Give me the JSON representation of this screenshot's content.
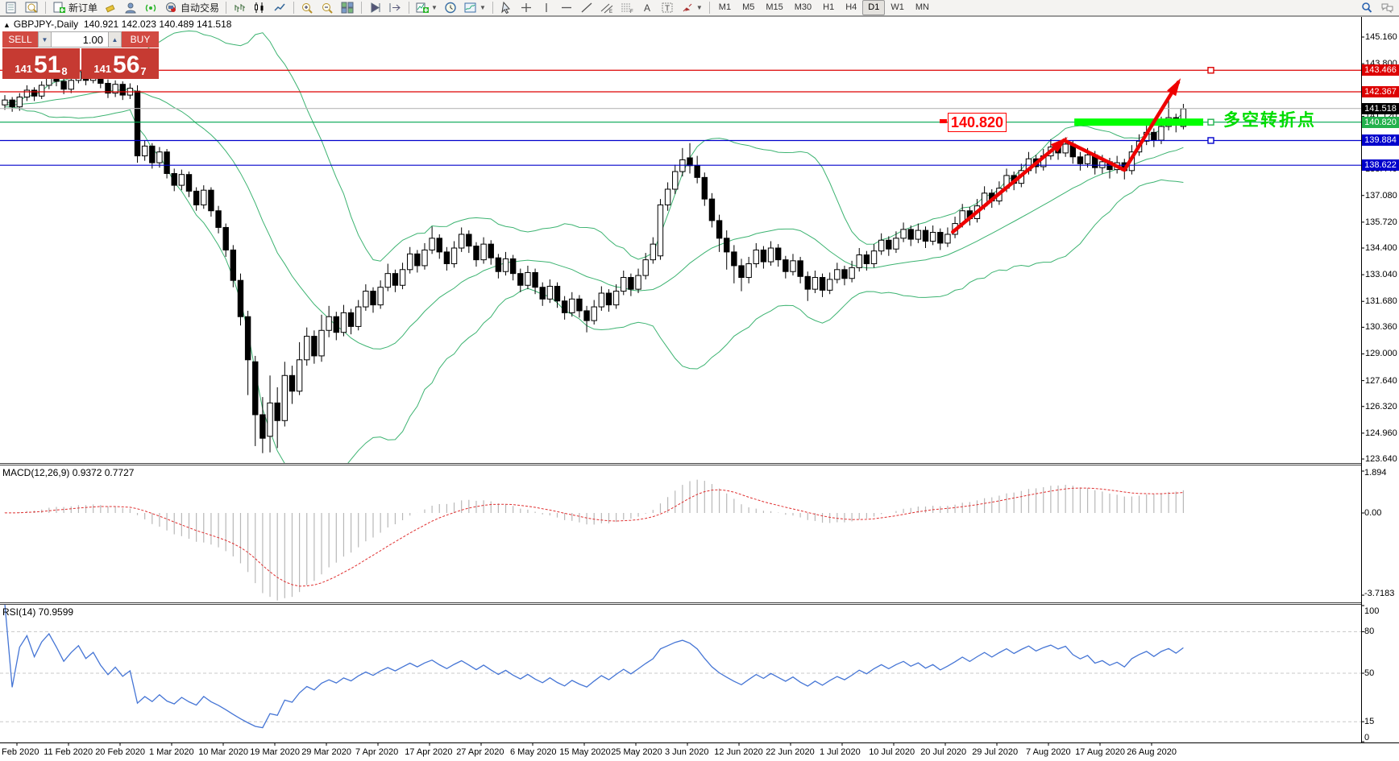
{
  "toolbar": {
    "new_order_label": "新订单",
    "auto_trading_label": "自动交易",
    "timeframes": [
      "M1",
      "M5",
      "M15",
      "M30",
      "H1",
      "H4",
      "D1",
      "W1",
      "MN"
    ],
    "active_timeframe": "D1",
    "left_groups": [
      {
        "items": [
          {
            "name": "chart-window-icon",
            "t": "doc"
          },
          {
            "name": "profiles-icon",
            "t": "grid"
          }
        ]
      },
      {
        "items": [
          {
            "name": "new-order-button",
            "t": "plusdoc",
            "label_key": "new_order_label"
          },
          {
            "name": "eraser-icon",
            "t": "eraser"
          },
          {
            "name": "expert-advisor-icon",
            "t": "person"
          },
          {
            "name": "signals-icon",
            "t": "signal"
          },
          {
            "name": "auto-trading-button",
            "t": "robot",
            "label_key": "auto_trading_label"
          }
        ]
      },
      {
        "items": [
          {
            "name": "bar-chart-icon",
            "t": "bars"
          },
          {
            "name": "candle-chart-icon",
            "t": "candles"
          },
          {
            "name": "line-chart-icon",
            "t": "linec"
          }
        ]
      },
      {
        "items": [
          {
            "name": "zoom-in-icon",
            "t": "zin"
          },
          {
            "name": "zoom-out-icon",
            "t": "zout"
          },
          {
            "name": "tile-windows-icon",
            "t": "tiles"
          }
        ]
      },
      {
        "items": [
          {
            "name": "auto-scroll-icon",
            "t": "play"
          },
          {
            "name": "chart-shift-icon",
            "t": "shift"
          }
        ]
      },
      {
        "items": [
          {
            "name": "indicators-icon",
            "t": "ind",
            "dd": true
          },
          {
            "name": "periods-icon",
            "t": "clock"
          },
          {
            "name": "templates-icon",
            "t": "tmpl",
            "dd": true
          }
        ]
      },
      {
        "items": [
          {
            "name": "cursor-icon",
            "t": "cursor"
          },
          {
            "name": "crosshair-icon",
            "t": "cross"
          },
          {
            "name": "vertical-line-icon",
            "t": "vline"
          },
          {
            "name": "horizontal-line-icon",
            "t": "hline"
          },
          {
            "name": "trendline-icon",
            "t": "tline"
          },
          {
            "name": "equidistant-channel-icon",
            "t": "chan"
          },
          {
            "name": "fibonacci-icon",
            "t": "fibo"
          },
          {
            "name": "text-icon",
            "t": "A"
          },
          {
            "name": "text-label-icon",
            "t": "T"
          },
          {
            "name": "arrows-icon",
            "t": "arrw",
            "dd": true
          }
        ]
      }
    ],
    "right_items": [
      {
        "name": "search-icon",
        "t": "search"
      },
      {
        "name": "chat-icon",
        "t": "chat"
      }
    ]
  },
  "chart_header": {
    "collapse_icon": "▲",
    "symbol": "GBPJPY-,Daily",
    "open": "140.921",
    "high": "142.023",
    "low": "140.489",
    "close": "141.518"
  },
  "trade_panel": {
    "sell_label": "SELL",
    "buy_label": "BUY",
    "volume": "1.00",
    "sell_price_prefix": "141",
    "sell_price_big": "51",
    "sell_price_sup": "8",
    "buy_price_prefix": "141",
    "buy_price_big": "56",
    "buy_price_sup": "7"
  },
  "macd_label": "MACD(12,26,9) 0.9372 0.7727",
  "rsi_label": "RSI(14) 70.9599",
  "annotations": {
    "level_callout": "140.820",
    "turning_point_text": "多空转折点"
  },
  "axes": {
    "price_ticks": [
      145.16,
      143.8,
      142.44,
      141.12,
      139.76,
      138.44,
      137.08,
      135.72,
      134.4,
      133.04,
      131.68,
      130.36,
      129.0,
      127.64,
      126.32,
      124.96,
      123.64
    ],
    "macd_ticks": {
      "top": "1.894",
      "zero": "0.00",
      "bottom": "-3.7183"
    },
    "rsi_ticks": [
      100,
      80,
      50,
      15,
      0
    ],
    "dates": [
      "Feb 2020",
      "11 Feb 2020",
      "20 Feb 2020",
      "1 Mar 2020",
      "10 Mar 2020",
      "19 Mar 2020",
      "29 Mar 2020",
      "7 Apr 2020",
      "17 Apr 2020",
      "27 Apr 2020",
      "6 May 2020",
      "15 May 2020",
      "25 May 2020",
      "3 Jun 2020",
      "12 Jun 2020",
      "22 Jun 2020",
      "1 Jul 2020",
      "10 Jul 2020",
      "20 Jul 2020",
      "29 Jul 2020",
      "7 Aug 2020",
      "17 Aug 2020",
      "26 Aug 2020"
    ]
  },
  "levels": [
    {
      "value": 143.466,
      "label": "143.466",
      "color": "#dd0000",
      "handle": true
    },
    {
      "value": 142.367,
      "label": "142.367",
      "color": "#dd0000",
      "handle": false
    },
    {
      "value": 141.518,
      "label": "141.518",
      "color": "#000000",
      "line_color": "#b8b8b8",
      "current": true
    },
    {
      "value": 140.82,
      "label": "140.820",
      "color": "#22b14c",
      "line_color": "#00a650",
      "handle": true
    },
    {
      "value": 139.884,
      "label": "139.884",
      "color": "#0000cc",
      "handle": true
    },
    {
      "value": 138.622,
      "label": "138.622",
      "color": "#0000cc",
      "handle": false
    }
  ],
  "chart_data": {
    "type": "candlestick",
    "title": "GBPJPY Daily",
    "ohlc_current": {
      "open": 140.921,
      "high": 142.023,
      "low": 140.489,
      "close": 141.518
    },
    "y_range_main": [
      123.43,
      146.15
    ],
    "indicators": [
      {
        "name": "Bollinger Bands",
        "period": 20,
        "deviation": 2,
        "color": "#3cb371"
      },
      {
        "name": "MACD",
        "fast": 12,
        "slow": 26,
        "signal": 9,
        "value": 0.9372,
        "signal_value": 0.7727,
        "range": [
          -3.7183,
          1.894
        ]
      },
      {
        "name": "RSI",
        "period": 14,
        "value": 70.9599,
        "levels": [
          80,
          50,
          15
        ],
        "range": [
          0,
          100
        ]
      }
    ],
    "horizontal_levels": [
      143.466,
      142.367,
      141.518,
      140.82,
      139.884,
      138.622
    ],
    "trend_arrow": {
      "points_bar_price": [
        [
          128.7,
          135.22
        ],
        [
          143.8,
          139.9
        ],
        [
          152.0,
          138.38
        ],
        [
          159.3,
          142.85
        ]
      ],
      "color": "#ee0000"
    },
    "highlight_zone": {
      "price": 140.82,
      "from_bar": 145.2,
      "to_bar": 162.7,
      "color": "#00ff00"
    },
    "candles": [
      [
        141.7,
        142.2,
        141.45,
        141.95
      ],
      [
        141.95,
        142.1,
        141.35,
        141.6
      ],
      [
        141.6,
        142.3,
        141.4,
        142.1
      ],
      [
        142.1,
        142.7,
        141.9,
        142.45
      ],
      [
        142.45,
        142.6,
        141.9,
        142.15
      ],
      [
        142.15,
        142.9,
        142.0,
        142.7
      ],
      [
        142.7,
        143.45,
        142.5,
        143.2
      ],
      [
        143.2,
        143.4,
        142.65,
        142.9
      ],
      [
        142.9,
        143.1,
        142.25,
        142.5
      ],
      [
        142.5,
        143.15,
        142.3,
        142.95
      ],
      [
        142.95,
        143.9,
        142.8,
        143.4
      ],
      [
        143.4,
        143.6,
        142.7,
        142.95
      ],
      [
        142.95,
        143.85,
        142.8,
        143.35
      ],
      [
        143.35,
        143.5,
        142.55,
        142.8
      ],
      [
        142.8,
        143.0,
        142.05,
        142.3
      ],
      [
        142.3,
        142.95,
        142.1,
        142.75
      ],
      [
        142.75,
        142.9,
        141.95,
        142.2
      ],
      [
        142.2,
        142.8,
        142.0,
        142.55
      ],
      [
        142.4,
        142.7,
        138.75,
        139.1
      ],
      [
        139.1,
        139.9,
        138.85,
        139.6
      ],
      [
        139.6,
        139.75,
        138.45,
        138.75
      ],
      [
        138.75,
        139.55,
        138.5,
        139.3
      ],
      [
        139.3,
        139.45,
        137.95,
        138.2
      ],
      [
        138.2,
        138.45,
        137.3,
        137.6
      ],
      [
        137.6,
        138.4,
        137.35,
        138.15
      ],
      [
        138.15,
        138.3,
        137.0,
        137.3
      ],
      [
        137.3,
        137.5,
        136.3,
        136.6
      ],
      [
        136.6,
        137.6,
        136.4,
        137.35
      ],
      [
        137.35,
        137.5,
        136.0,
        136.3
      ],
      [
        136.3,
        136.55,
        135.15,
        135.45
      ],
      [
        135.45,
        135.65,
        133.95,
        134.3
      ],
      [
        134.3,
        134.55,
        132.4,
        132.75
      ],
      [
        132.75,
        133.1,
        130.45,
        130.9
      ],
      [
        130.9,
        131.2,
        126.9,
        128.7
      ],
      [
        128.6,
        128.9,
        124.3,
        125.9
      ],
      [
        125.9,
        126.8,
        123.94,
        124.7
      ],
      [
        124.8,
        127.9,
        123.98,
        126.5
      ],
      [
        126.5,
        127.3,
        124.2,
        125.6
      ],
      [
        125.6,
        128.6,
        125.3,
        127.9
      ],
      [
        127.9,
        128.4,
        126.45,
        127.1
      ],
      [
        127.1,
        129.6,
        126.9,
        128.7
      ],
      [
        128.7,
        130.35,
        128.4,
        129.9
      ],
      [
        129.9,
        130.2,
        128.5,
        128.9
      ],
      [
        128.9,
        131.0,
        128.6,
        130.2
      ],
      [
        130.2,
        131.45,
        129.85,
        130.9
      ],
      [
        130.9,
        131.15,
        129.7,
        130.1
      ],
      [
        130.1,
        131.5,
        129.9,
        131.1
      ],
      [
        131.1,
        131.3,
        130.0,
        130.4
      ],
      [
        130.4,
        131.75,
        130.2,
        131.4
      ],
      [
        131.4,
        132.55,
        131.2,
        132.2
      ],
      [
        132.2,
        132.4,
        131.1,
        131.5
      ],
      [
        131.5,
        132.75,
        131.3,
        132.4
      ],
      [
        132.4,
        133.6,
        132.2,
        133.1
      ],
      [
        133.1,
        133.3,
        132.15,
        132.5
      ],
      [
        132.5,
        133.65,
        132.3,
        133.3
      ],
      [
        133.3,
        134.45,
        133.1,
        134.1
      ],
      [
        134.1,
        134.3,
        133.15,
        133.5
      ],
      [
        133.5,
        134.65,
        133.3,
        134.3
      ],
      [
        134.3,
        135.5,
        134.1,
        134.9
      ],
      [
        134.9,
        135.1,
        133.85,
        134.2
      ],
      [
        134.2,
        134.45,
        133.25,
        133.6
      ],
      [
        133.6,
        134.75,
        133.4,
        134.4
      ],
      [
        134.4,
        135.45,
        134.2,
        135.1
      ],
      [
        135.1,
        135.3,
        134.15,
        134.5
      ],
      [
        134.5,
        134.7,
        133.45,
        133.8
      ],
      [
        133.8,
        134.95,
        133.6,
        134.6
      ],
      [
        134.6,
        134.8,
        133.55,
        133.9
      ],
      [
        133.9,
        134.1,
        132.85,
        133.2
      ],
      [
        133.2,
        134.2,
        133.0,
        133.85
      ],
      [
        133.85,
        134.05,
        132.75,
        133.1
      ],
      [
        133.1,
        133.35,
        132.15,
        132.5
      ],
      [
        132.5,
        133.5,
        132.3,
        133.15
      ],
      [
        133.15,
        133.35,
        132.05,
        132.4
      ],
      [
        132.4,
        132.65,
        131.45,
        131.8
      ],
      [
        131.8,
        132.8,
        131.6,
        132.45
      ],
      [
        132.45,
        132.65,
        131.35,
        131.7
      ],
      [
        131.7,
        131.95,
        130.75,
        131.1
      ],
      [
        131.1,
        132.15,
        130.9,
        131.8
      ],
      [
        131.8,
        132.0,
        130.85,
        131.2
      ],
      [
        131.2,
        131.45,
        130.1,
        130.7
      ],
      [
        130.7,
        131.75,
        130.5,
        131.4
      ],
      [
        131.4,
        132.45,
        131.2,
        132.1
      ],
      [
        132.1,
        132.3,
        131.15,
        131.5
      ],
      [
        131.5,
        132.55,
        131.3,
        132.2
      ],
      [
        132.2,
        133.25,
        132.0,
        132.9
      ],
      [
        132.9,
        133.1,
        131.95,
        132.3
      ],
      [
        132.3,
        133.35,
        132.1,
        133.0
      ],
      [
        133.0,
        134.15,
        132.8,
        133.8
      ],
      [
        133.8,
        134.95,
        133.6,
        134.6
      ],
      [
        134.0,
        136.9,
        133.8,
        136.6
      ],
      [
        136.6,
        137.75,
        136.3,
        137.4
      ],
      [
        137.4,
        138.65,
        137.15,
        138.3
      ],
      [
        138.3,
        139.5,
        138.05,
        138.9
      ],
      [
        139.0,
        139.75,
        138.2,
        138.6
      ],
      [
        138.6,
        139.1,
        137.7,
        138.0
      ],
      [
        138.0,
        138.25,
        136.55,
        136.9
      ],
      [
        136.9,
        137.2,
        135.45,
        135.8
      ],
      [
        135.8,
        136.1,
        134.2,
        134.9
      ],
      [
        134.9,
        135.3,
        133.3,
        134.2
      ],
      [
        134.2,
        134.55,
        132.6,
        133.5
      ],
      [
        133.5,
        133.85,
        132.2,
        132.9
      ],
      [
        132.9,
        133.95,
        132.6,
        133.6
      ],
      [
        133.6,
        134.65,
        133.4,
        134.3
      ],
      [
        134.3,
        134.5,
        133.35,
        133.7
      ],
      [
        133.7,
        134.75,
        133.5,
        134.4
      ],
      [
        134.4,
        134.6,
        133.45,
        133.8
      ],
      [
        133.8,
        134.0,
        132.85,
        133.2
      ],
      [
        133.2,
        134.1,
        133.0,
        133.75
      ],
      [
        133.75,
        133.95,
        132.6,
        132.95
      ],
      [
        132.95,
        133.2,
        131.7,
        132.3
      ],
      [
        132.3,
        133.25,
        132.1,
        132.9
      ],
      [
        132.9,
        133.1,
        131.9,
        132.25
      ],
      [
        132.25,
        133.15,
        132.05,
        132.8
      ],
      [
        132.8,
        133.65,
        132.6,
        133.3
      ],
      [
        133.3,
        133.5,
        132.5,
        132.85
      ],
      [
        132.85,
        133.75,
        132.65,
        133.4
      ],
      [
        133.4,
        134.4,
        133.2,
        134.05
      ],
      [
        134.05,
        134.25,
        133.25,
        133.6
      ],
      [
        133.6,
        134.6,
        133.4,
        134.25
      ],
      [
        134.25,
        135.15,
        134.05,
        134.8
      ],
      [
        134.8,
        135.0,
        134.0,
        134.35
      ],
      [
        134.35,
        135.25,
        134.15,
        134.9
      ],
      [
        134.9,
        135.7,
        134.7,
        135.35
      ],
      [
        135.35,
        135.55,
        134.5,
        134.85
      ],
      [
        134.85,
        135.65,
        134.65,
        135.3
      ],
      [
        135.3,
        135.5,
        134.4,
        134.75
      ],
      [
        134.75,
        135.55,
        134.55,
        135.2
      ],
      [
        135.2,
        135.4,
        134.3,
        134.65
      ],
      [
        134.65,
        135.45,
        134.45,
        135.1
      ],
      [
        135.1,
        136.0,
        134.9,
        135.65
      ],
      [
        135.65,
        136.65,
        135.45,
        136.3
      ],
      [
        136.3,
        136.5,
        135.55,
        135.9
      ],
      [
        135.9,
        136.9,
        135.7,
        136.55
      ],
      [
        136.55,
        137.55,
        136.35,
        137.2
      ],
      [
        137.2,
        137.4,
        136.45,
        136.8
      ],
      [
        136.8,
        137.8,
        136.6,
        137.45
      ],
      [
        137.45,
        138.45,
        137.25,
        138.1
      ],
      [
        138.1,
        138.3,
        137.35,
        137.7
      ],
      [
        137.7,
        138.7,
        137.5,
        138.35
      ],
      [
        138.35,
        139.3,
        138.15,
        138.95
      ],
      [
        138.95,
        139.15,
        138.2,
        138.55
      ],
      [
        138.55,
        139.45,
        138.35,
        139.1
      ],
      [
        139.1,
        139.95,
        138.9,
        139.55
      ],
      [
        139.55,
        139.75,
        138.9,
        139.25
      ],
      [
        139.25,
        140.05,
        139.05,
        139.7
      ],
      [
        139.7,
        139.9,
        138.7,
        139.05
      ],
      [
        139.05,
        139.3,
        138.35,
        138.7
      ],
      [
        138.7,
        139.5,
        138.5,
        139.15
      ],
      [
        139.15,
        139.35,
        138.15,
        138.5
      ],
      [
        138.5,
        139.15,
        138.2,
        138.8
      ],
      [
        138.8,
        139.0,
        137.95,
        138.4
      ],
      [
        138.4,
        139.1,
        138.2,
        138.75
      ],
      [
        138.75,
        138.95,
        137.9,
        138.35
      ],
      [
        138.35,
        139.65,
        138.15,
        139.3
      ],
      [
        139.3,
        140.2,
        139.1,
        139.85
      ],
      [
        139.85,
        140.65,
        139.65,
        140.3
      ],
      [
        140.3,
        140.5,
        139.55,
        139.9
      ],
      [
        139.9,
        141.1,
        139.7,
        140.6
      ],
      [
        140.6,
        142.05,
        140.4,
        141.05
      ],
      [
        141.05,
        141.25,
        140.3,
        140.7
      ],
      [
        140.6,
        141.75,
        140.45,
        141.5
      ]
    ]
  }
}
